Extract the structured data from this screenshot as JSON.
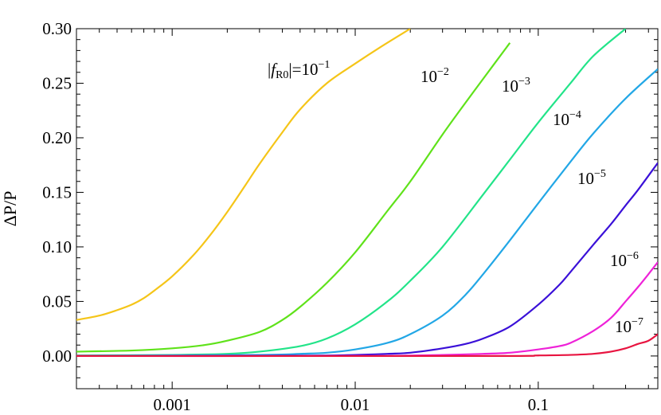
{
  "chart_data": {
    "type": "line",
    "title": "",
    "xlabel": "",
    "ylabel": "ΔP/P",
    "x_scale": "log",
    "xlim": [
      0.0003,
      0.45
    ],
    "ylim": [
      -0.03,
      0.3
    ],
    "x_ticks": [
      {
        "value": 0.001,
        "label": "0.001"
      },
      {
        "value": 0.01,
        "label": "0.01"
      },
      {
        "value": 0.1,
        "label": "0.1"
      }
    ],
    "y_ticks": [
      {
        "value": 0.0,
        "label": "0.00"
      },
      {
        "value": 0.05,
        "label": "0.05"
      },
      {
        "value": 0.1,
        "label": "0.10"
      },
      {
        "value": 0.15,
        "label": "0.15"
      },
      {
        "value": 0.2,
        "label": "0.20"
      },
      {
        "value": 0.25,
        "label": "0.25"
      },
      {
        "value": 0.3,
        "label": "0.30"
      }
    ],
    "grid": false,
    "legend": "inline labels",
    "series": [
      {
        "label_base": "10",
        "label_exp": "−1",
        "label_prefix_var": "f",
        "label_prefix_sub": "R0",
        "color": "#f5c518",
        "x": [
          0.0003,
          0.0004,
          0.0005,
          0.0006,
          0.0007,
          0.0008,
          0.001,
          0.0013,
          0.0016,
          0.002,
          0.0025,
          0.003,
          0.004,
          0.005,
          0.007,
          0.01,
          0.014,
          0.02
        ],
        "y": [
          0.033,
          0.037,
          0.042,
          0.047,
          0.053,
          0.06,
          0.073,
          0.092,
          0.11,
          0.132,
          0.156,
          0.176,
          0.205,
          0.226,
          0.25,
          0.268,
          0.284,
          0.3
        ]
      },
      {
        "label_base": "10",
        "label_exp": "−2",
        "color": "#5fe21a",
        "x": [
          0.0003,
          0.0006,
          0.001,
          0.0015,
          0.002,
          0.003,
          0.004,
          0.005,
          0.007,
          0.01,
          0.015,
          0.02,
          0.03,
          0.04,
          0.05,
          0.07
        ],
        "y": [
          0.004,
          0.005,
          0.007,
          0.01,
          0.014,
          0.022,
          0.033,
          0.045,
          0.067,
          0.095,
          0.133,
          0.16,
          0.203,
          0.232,
          0.254,
          0.287
        ]
      },
      {
        "label_base": "10",
        "label_exp": "−3",
        "color": "#22e489",
        "x": [
          0.0003,
          0.001,
          0.002,
          0.003,
          0.005,
          0.007,
          0.01,
          0.015,
          0.02,
          0.03,
          0.05,
          0.07,
          0.1,
          0.15,
          0.2,
          0.3
        ],
        "y": [
          0.0005,
          0.001,
          0.002,
          0.004,
          0.009,
          0.016,
          0.029,
          0.05,
          0.069,
          0.1,
          0.148,
          0.18,
          0.214,
          0.25,
          0.275,
          0.3
        ]
      },
      {
        "label_base": "10",
        "label_exp": "−4",
        "color": "#22a7e6",
        "x": [
          0.0003,
          0.003,
          0.005,
          0.007,
          0.01,
          0.015,
          0.02,
          0.03,
          0.04,
          0.05,
          0.07,
          0.1,
          0.15,
          0.2,
          0.3,
          0.45
        ],
        "y": [
          0.0,
          0.001,
          0.002,
          0.003,
          0.006,
          0.012,
          0.02,
          0.037,
          0.056,
          0.075,
          0.106,
          0.14,
          0.178,
          0.204,
          0.236,
          0.263
        ]
      },
      {
        "label_base": "10",
        "label_exp": "−5",
        "color": "#3a10d8",
        "x": [
          0.0003,
          0.005,
          0.01,
          0.015,
          0.02,
          0.03,
          0.04,
          0.05,
          0.07,
          0.1,
          0.13,
          0.15,
          0.2,
          0.25,
          0.3,
          0.35,
          0.45
        ],
        "y": [
          0.0,
          0.0003,
          0.001,
          0.002,
          0.003,
          0.007,
          0.011,
          0.016,
          0.027,
          0.047,
          0.065,
          0.077,
          0.102,
          0.121,
          0.138,
          0.152,
          0.177
        ]
      },
      {
        "label_base": "10",
        "label_exp": "−6",
        "color": "#ee22d8",
        "x": [
          0.0003,
          0.01,
          0.03,
          0.05,
          0.07,
          0.1,
          0.13,
          0.15,
          0.2,
          0.25,
          0.3,
          0.35,
          0.4,
          0.45
        ],
        "y": [
          0.0,
          0.0,
          0.001,
          0.002,
          0.003,
          0.006,
          0.009,
          0.012,
          0.023,
          0.035,
          0.05,
          0.063,
          0.075,
          0.086
        ]
      },
      {
        "label_base": "10",
        "label_exp": "−7",
        "color": "#e81440",
        "x": [
          0.0003,
          0.05,
          0.1,
          0.15,
          0.2,
          0.25,
          0.3,
          0.35,
          0.4,
          0.45
        ],
        "y": [
          0.0,
          0.0,
          0.0005,
          0.001,
          0.002,
          0.004,
          0.007,
          0.011,
          0.014,
          0.02
        ]
      }
    ]
  }
}
